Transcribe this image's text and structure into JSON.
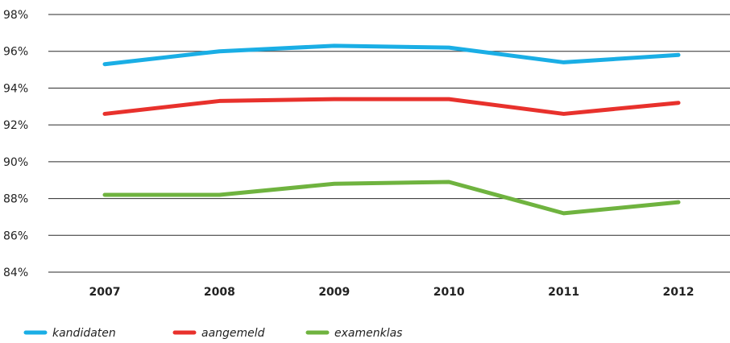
{
  "chart_data": {
    "type": "line",
    "title": "",
    "xlabel": "",
    "ylabel": "",
    "categories": [
      "2007",
      "2008",
      "2009",
      "2010",
      "2011",
      "2012"
    ],
    "y_tick_labels": [
      "98%",
      "96%",
      "94%",
      "92%",
      "90%",
      "88%",
      "86%",
      "84%"
    ],
    "y_ticks": [
      98,
      96,
      94,
      92,
      90,
      88,
      86,
      84
    ],
    "ylim": [
      84,
      98
    ],
    "grid": true,
    "legend_position": "bottom-left",
    "series": [
      {
        "name": "kandidaten",
        "color": "#1aaee5",
        "values": [
          95.3,
          96.0,
          96.3,
          96.2,
          95.4,
          95.8
        ]
      },
      {
        "name": "aangemeld",
        "color": "#e8312c",
        "values": [
          92.6,
          93.3,
          93.4,
          93.4,
          92.6,
          93.2
        ]
      },
      {
        "name": "examenklas",
        "color": "#6fb33f",
        "values": [
          88.2,
          88.2,
          88.8,
          88.9,
          87.2,
          87.8
        ]
      }
    ]
  }
}
